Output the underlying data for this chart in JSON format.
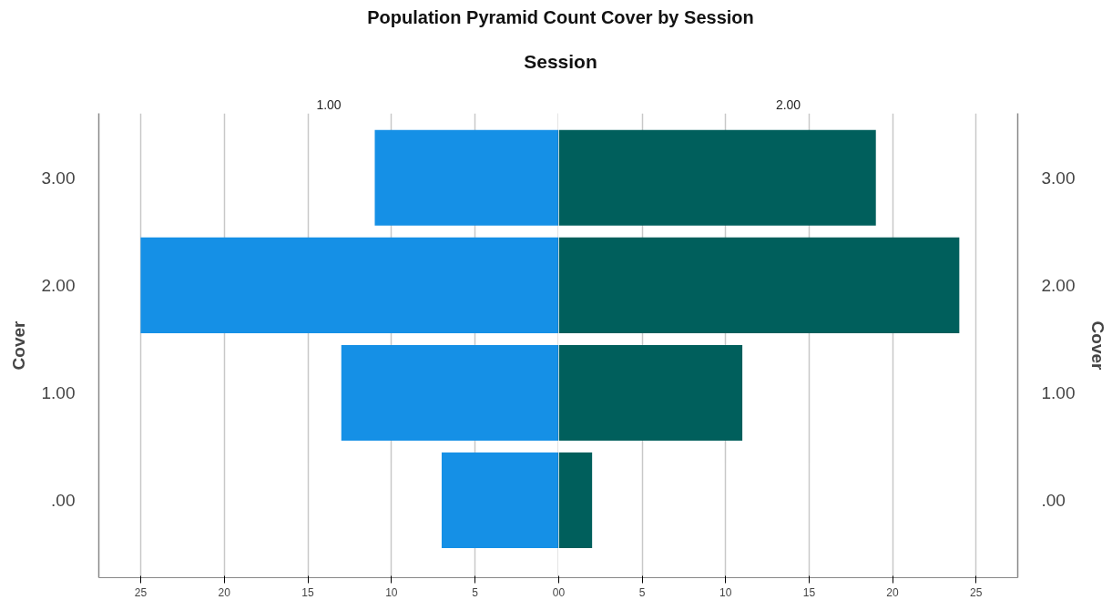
{
  "chart_data": [
    {
      "type": "bar",
      "orientation": "horizontal",
      "title": "1.00",
      "annotations": [
        "Population Pyramid Count Cover  by Session",
        "Session"
      ],
      "ylabel": "Cover",
      "categories": [
        "3.00",
        "2.00",
        "1.00",
        ".00"
      ],
      "values": [
        11,
        25,
        13,
        7
      ],
      "color": "#1590e6",
      "xlim": [
        27.5,
        0
      ],
      "xticks": [
        25,
        20,
        15,
        10,
        5,
        0
      ],
      "grid": "x"
    },
    {
      "type": "bar",
      "orientation": "horizontal",
      "title": "2.00",
      "ylabel": "Cover",
      "categories": [
        "3.00",
        "2.00",
        "1.00",
        ".00"
      ],
      "values": [
        19,
        24,
        11,
        2
      ],
      "color": "#005f5c",
      "xlim": [
        0,
        27.5
      ],
      "xticks": [
        0,
        5,
        10,
        15,
        20,
        25
      ],
      "grid": "x"
    }
  ]
}
